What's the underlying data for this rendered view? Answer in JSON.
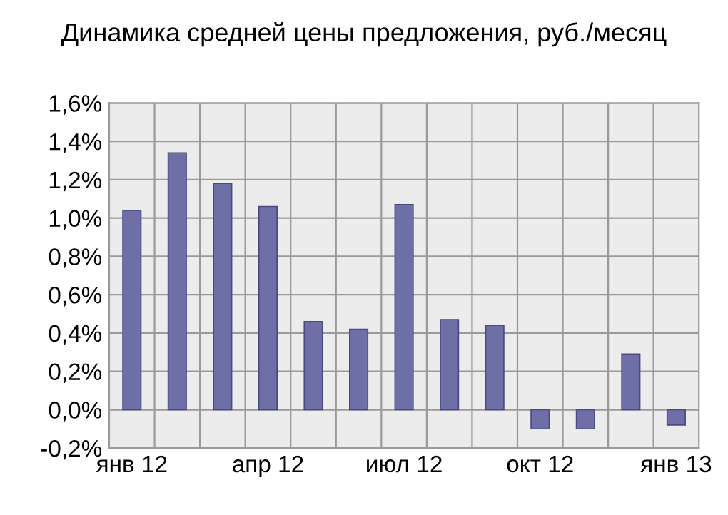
{
  "chart_data": {
    "type": "bar",
    "title": "Динамика средней цены предложения, руб./месяц",
    "categories": [
      "янв 12",
      null,
      null,
      "апр 12",
      null,
      null,
      "июл 12",
      null,
      null,
      "окт 12",
      null,
      null,
      "янв 13"
    ],
    "values": [
      1.04,
      1.34,
      1.18,
      1.06,
      0.46,
      0.42,
      1.07,
      0.47,
      0.44,
      -0.1,
      -0.1,
      0.29,
      -0.08
    ],
    "color": "#6f6fa8",
    "ylim": [
      -0.2,
      1.6
    ],
    "yticks": [
      {
        "value": -0.2,
        "label": "-0,2%"
      },
      {
        "value": 0.0,
        "label": "0,0%"
      },
      {
        "value": 0.2,
        "label": "0,2%"
      },
      {
        "value": 0.4,
        "label": "0,4%"
      },
      {
        "value": 0.6,
        "label": "0,6%"
      },
      {
        "value": 0.8,
        "label": "0,8%"
      },
      {
        "value": 1.0,
        "label": "1,0%"
      },
      {
        "value": 1.2,
        "label": "1,2%"
      },
      {
        "value": 1.4,
        "label": "1,4%"
      },
      {
        "value": 1.6,
        "label": "1,6%"
      }
    ],
    "grid": true
  }
}
